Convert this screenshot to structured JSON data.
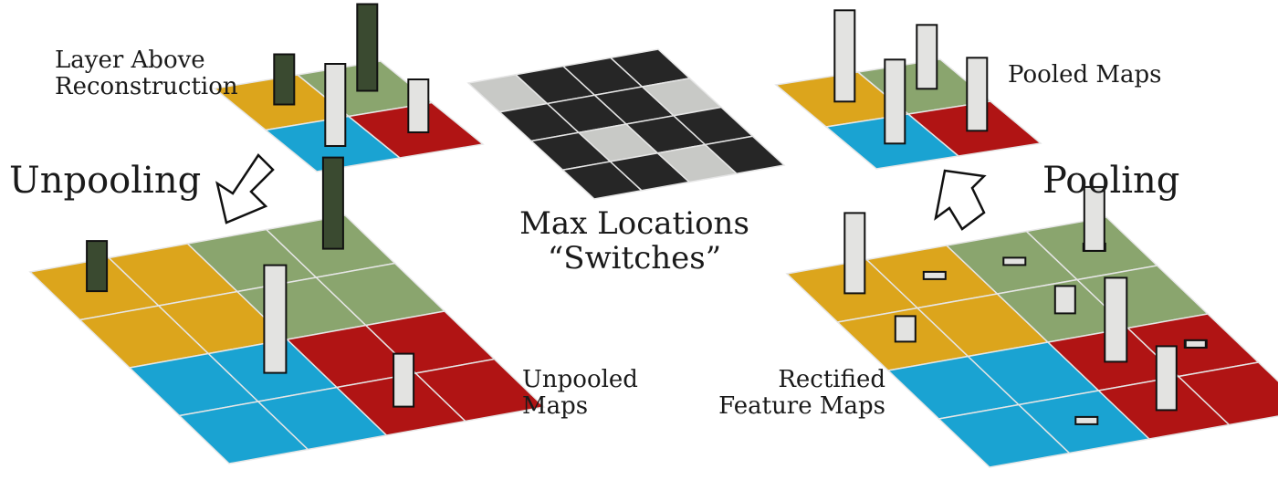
{
  "labels": {
    "layer_above": [
      "Layer Above",
      "Reconstruction"
    ],
    "unpooling": "Unpooling",
    "switches": [
      "Max Locations",
      "“Switches”"
    ],
    "pooled_maps": "Pooled Maps",
    "pooling": "Pooling",
    "unpooled_maps": [
      "Unpooled",
      "Maps"
    ],
    "rectified_maps": [
      "Rectified",
      "Feature Maps"
    ]
  },
  "colors": {
    "orange": "#dca51c",
    "green": "#8aa56e",
    "blue": "#1aa3d2",
    "red": "#b01414",
    "switch_on": "#c8c9c6",
    "switch_off": "#262626",
    "bar_light": "#e3e3e1",
    "bar_dark": "#3a4a30"
  },
  "switch_grid": [
    [
      1,
      0,
      0,
      0
    ],
    [
      0,
      0,
      0,
      1
    ],
    [
      0,
      1,
      0,
      0
    ],
    [
      0,
      0,
      1,
      0
    ]
  ]
}
